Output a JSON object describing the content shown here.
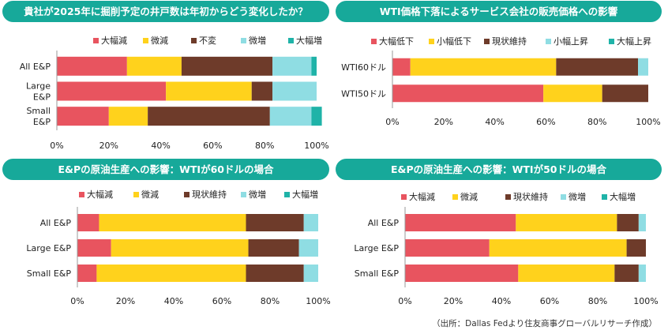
{
  "source": "（出所：Dallas Fedより住友商事グローバルリサーチ作成）",
  "chart_data": [
    {
      "type": "bar",
      "orientation": "horizontal",
      "stacked": true,
      "title": "貴社が2025年に掘削予定の井戸数は年初からどう変化したか？",
      "categories": [
        "All E&P",
        "Large E&P",
        "Small E&P"
      ],
      "series": [
        {
          "name": "大幅減",
          "color": "#e8545f",
          "values": [
            27,
            42,
            20
          ]
        },
        {
          "name": "微減",
          "color": "#ffd21c",
          "values": [
            21,
            33,
            15
          ]
        },
        {
          "name": "不変",
          "color": "#6e3b2a",
          "values": [
            35,
            8,
            47
          ]
        },
        {
          "name": "微増",
          "color": "#8fdde3",
          "values": [
            15,
            17,
            16
          ]
        },
        {
          "name": "大幅増",
          "color": "#1fb3a8",
          "values": [
            2,
            0,
            4
          ]
        }
      ],
      "xlim": [
        0,
        100
      ],
      "xticks": [
        "0%",
        "20%",
        "40%",
        "60%",
        "80%",
        "100%"
      ],
      "legend": "top"
    },
    {
      "type": "bar",
      "orientation": "horizontal",
      "stacked": true,
      "title": "WTI価格下落によるサービス会社の販売価格への影響",
      "categories": [
        "WTI60ドル",
        "WTI50ドル"
      ],
      "series": [
        {
          "name": "大幅低下",
          "color": "#e8545f",
          "values": [
            7,
            59
          ]
        },
        {
          "name": "小幅低下",
          "color": "#ffd21c",
          "values": [
            57,
            23
          ]
        },
        {
          "name": "現状維持",
          "color": "#6e3b2a",
          "values": [
            32,
            18
          ]
        },
        {
          "name": "小幅上昇",
          "color": "#8fdde3",
          "values": [
            4,
            0
          ]
        },
        {
          "name": "大幅上昇",
          "color": "#1fb3a8",
          "values": [
            0,
            0
          ]
        }
      ],
      "xlim": [
        0,
        100
      ],
      "xticks": [
        "0%",
        "20%",
        "40%",
        "60%",
        "80%",
        "100%"
      ],
      "legend": "top"
    },
    {
      "type": "bar",
      "orientation": "horizontal",
      "stacked": true,
      "title": "E&Pの原油生産への影響：WTIが60ドルの場合",
      "categories": [
        "All E&P",
        "Large E&P",
        "Small E&P"
      ],
      "series": [
        {
          "name": "大幅減",
          "color": "#e8545f",
          "values": [
            9,
            14,
            8
          ]
        },
        {
          "name": "微減",
          "color": "#ffd21c",
          "values": [
            61,
            57,
            62
          ]
        },
        {
          "name": "現状維持",
          "color": "#6e3b2a",
          "values": [
            24,
            21,
            24
          ]
        },
        {
          "name": "微増",
          "color": "#8fdde3",
          "values": [
            6,
            8,
            6
          ]
        },
        {
          "name": "大幅増",
          "color": "#1fb3a8",
          "values": [
            0,
            0,
            0
          ]
        }
      ],
      "xlim": [
        0,
        100
      ],
      "xticks": [
        "0%",
        "20%",
        "40%",
        "60%",
        "80%",
        "100%"
      ],
      "legend": "top"
    },
    {
      "type": "bar",
      "orientation": "horizontal",
      "stacked": true,
      "title": "E&Pの原油生産への影響：WTIが50ドルの場合",
      "categories": [
        "All E&P",
        "Large E&P",
        "Small E&P"
      ],
      "series": [
        {
          "name": "大幅減",
          "color": "#e8545f",
          "values": [
            46,
            35,
            47
          ]
        },
        {
          "name": "微減",
          "color": "#ffd21c",
          "values": [
            42,
            57,
            40
          ]
        },
        {
          "name": "現状維持",
          "color": "#6e3b2a",
          "values": [
            9,
            8,
            10
          ]
        },
        {
          "name": "微増",
          "color": "#8fdde3",
          "values": [
            3,
            0,
            3
          ]
        },
        {
          "name": "大幅増",
          "color": "#1fb3a8",
          "values": [
            0,
            0,
            0
          ]
        }
      ],
      "xlim": [
        0,
        100
      ],
      "xticks": [
        "0%",
        "20%",
        "40%",
        "60%",
        "80%",
        "100%"
      ],
      "legend": "top"
    }
  ]
}
